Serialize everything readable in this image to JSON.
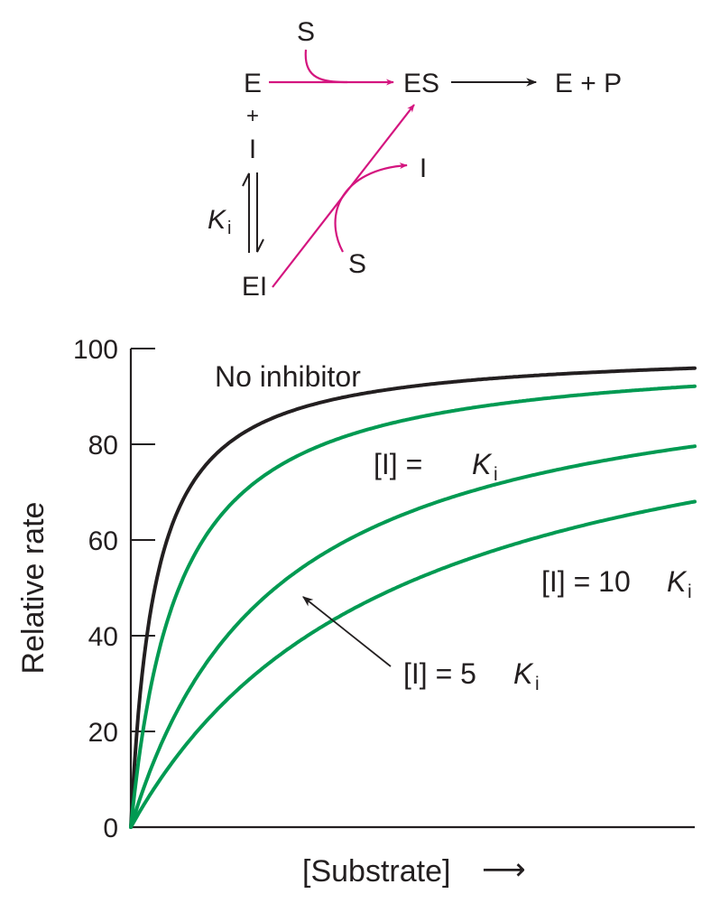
{
  "scheme": {
    "E": "E",
    "S_top": "S",
    "ES": "ES",
    "product": "E + P",
    "plus": "+",
    "I_left": "I",
    "Ki_K": "K",
    "Ki_sub": "i",
    "EI": "EI",
    "I_right": "I",
    "S_bottom": "S"
  },
  "colors": {
    "magenta": "#d4157f",
    "green": "#009a52",
    "black": "#231f20"
  },
  "chart_data": {
    "type": "line",
    "title": "",
    "xlabel": "[Substrate]",
    "xlabel_arrow": "⟶",
    "ylabel": "Relative rate",
    "ylim": [
      0,
      100
    ],
    "yticks": [
      0,
      20,
      40,
      60,
      80,
      100
    ],
    "ytick_labels": [
      "0",
      "20",
      "40",
      "60",
      "80",
      "100"
    ],
    "xlim": [
      0,
      117
    ],
    "x_tick_labels_shown": false,
    "grid": false,
    "vmax": 100,
    "km": 5,
    "series": [
      {
        "id": "none",
        "name": "No inhibitor",
        "color": "#231f20",
        "ki_multiple": 0
      },
      {
        "id": "ki1",
        "name": "[I] = Ki",
        "color": "#009a52",
        "ki_multiple": 1
      },
      {
        "id": "ki5",
        "name": "[I] = 5 Ki",
        "color": "#009a52",
        "ki_multiple": 5
      },
      {
        "id": "ki10",
        "name": "[I] = 10 Ki",
        "color": "#009a52",
        "ki_multiple": 10
      }
    ],
    "labels": {
      "none": "No inhibitor",
      "ki1_prefix": "[I] = ",
      "ki5_prefix": "[I] = 5 ",
      "ki10_prefix": "[I] = 10 ",
      "K": "K",
      "sub": "i"
    }
  }
}
